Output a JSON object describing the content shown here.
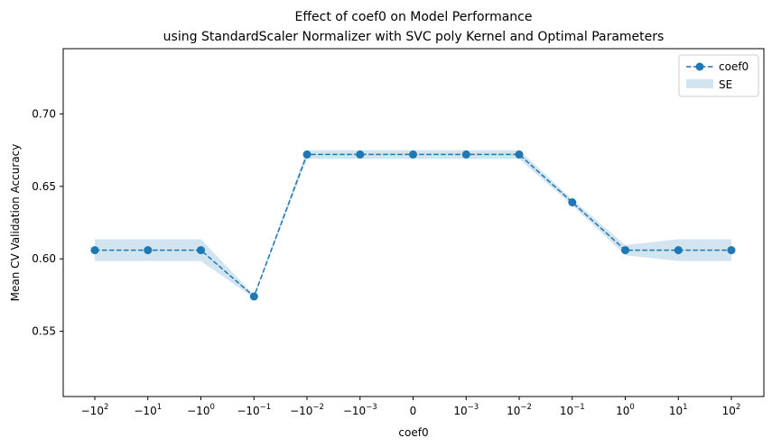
{
  "chart_data": {
    "type": "line",
    "title": [
      "Effect of coef0 on Model Performance",
      "using StandardScaler Normalizer with SVC poly Kernel and Optimal Parameters"
    ],
    "xlabel": "coef0",
    "ylabel": "Mean CV Validation Accuracy",
    "x_ticks": [
      {
        "sign": "−",
        "base": "10",
        "exp": "2"
      },
      {
        "sign": "−",
        "base": "10",
        "exp": "1"
      },
      {
        "sign": "−",
        "base": "10",
        "exp": "0"
      },
      {
        "sign": "−",
        "base": "10",
        "exp": "−1"
      },
      {
        "sign": "−",
        "base": "10",
        "exp": "−2"
      },
      {
        "sign": "−",
        "base": "10",
        "exp": "−3"
      },
      {
        "sign": "",
        "base": "0",
        "exp": ""
      },
      {
        "sign": "",
        "base": "10",
        "exp": "−3"
      },
      {
        "sign": "",
        "base": "10",
        "exp": "−2"
      },
      {
        "sign": "",
        "base": "10",
        "exp": "−1"
      },
      {
        "sign": "",
        "base": "10",
        "exp": "0"
      },
      {
        "sign": "",
        "base": "10",
        "exp": "1"
      },
      {
        "sign": "",
        "base": "10",
        "exp": "2"
      }
    ],
    "x": [
      -100,
      -10,
      -1,
      -0.1,
      -0.01,
      -0.001,
      0,
      0.001,
      0.01,
      0.1,
      1,
      10,
      100
    ],
    "ylim": [
      0.505,
      0.745
    ],
    "y_ticks": [
      0.55,
      0.6,
      0.65,
      0.7
    ],
    "y_tick_labels": [
      "0.55",
      "0.60",
      "0.65",
      "0.70"
    ],
    "grid": false,
    "legend_position": "top-right",
    "series": [
      {
        "name": "coef0",
        "style": "dashed line with circle markers",
        "color": "#1f77b4",
        "values": [
          0.606,
          0.606,
          0.606,
          0.574,
          0.672,
          0.672,
          0.672,
          0.672,
          0.672,
          0.639,
          0.606,
          0.606,
          0.606
        ],
        "se": [
          0.0075,
          0.0075,
          0.0075,
          0.001,
          0.003,
          0.003,
          0.003,
          0.003,
          0.003,
          0.002,
          0.0035,
          0.0075,
          0.0075
        ]
      }
    ],
    "band": {
      "name": "SE",
      "color": "#1f77b4",
      "opacity": 0.2
    }
  }
}
